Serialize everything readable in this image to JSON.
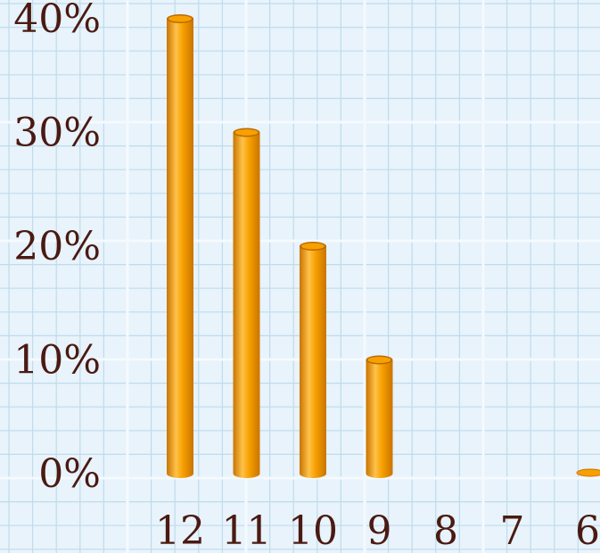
{
  "chart_data": {
    "type": "bar",
    "title": "",
    "xlabel": "",
    "ylabel": "",
    "categories": [
      "12",
      "11",
      "10",
      "9",
      "8",
      "7",
      "6"
    ],
    "values": [
      40,
      30,
      20,
      10,
      0,
      0,
      0
    ],
    "ylim": [
      0,
      40
    ],
    "y_ticks": [
      "0%",
      "10%",
      "20%",
      "30%",
      "40%"
    ],
    "bar_style": "cylinder",
    "grid": true,
    "legend": "none",
    "colors": {
      "bar": "#f7a000",
      "bar_highlight": "#ffc24a",
      "bar_shadow": "#c97400",
      "bar_top": "#b86a00",
      "text": "#4a1a12",
      "background": "#e8f3fb",
      "grid_major": "#f4fafe",
      "grid_minor": "#bfdcec"
    }
  }
}
